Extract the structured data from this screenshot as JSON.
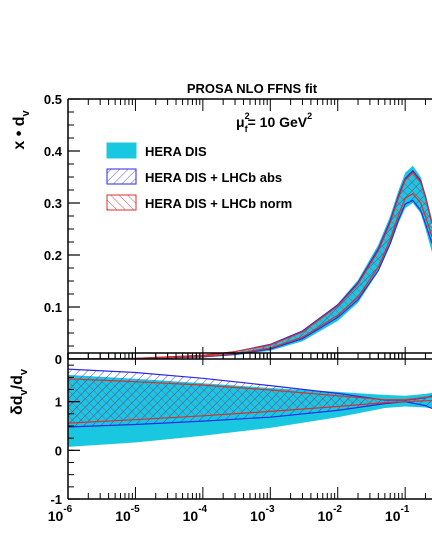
{
  "chart_data": [
    {
      "type": "area",
      "title": "PROSA NLO FFNS fit",
      "annotation": {
        "base": "μ",
        "sup": "2",
        "sub": "f",
        "rest": "= 10 GeV",
        "rest_sup": "2"
      },
      "ylabel": {
        "base": "x • d",
        "sub": "v"
      },
      "x_log": true,
      "xlim": [
        1e-06,
        0.25
      ],
      "ylim": [
        0,
        0.5
      ],
      "y_ticks": [
        "0",
        "0.1",
        "0.2",
        "0.3",
        "0.4",
        "0.5"
      ],
      "legend_placement": "top-left",
      "series": [
        {
          "name": "HERA DIS",
          "style": "filled",
          "color": "#19c8e0",
          "x": [
            1e-06,
            1e-05,
            0.0001,
            0.0003,
            0.001,
            0.003,
            0.01,
            0.02,
            0.04,
            0.06,
            0.08,
            0.1,
            0.13,
            0.17,
            0.2,
            0.25
          ],
          "lower": [
            0,
            0.0004,
            0.003,
            0.007,
            0.016,
            0.034,
            0.073,
            0.108,
            0.168,
            0.218,
            0.262,
            0.29,
            0.3,
            0.28,
            0.25,
            0.205
          ],
          "upper": [
            0,
            0.0009,
            0.006,
            0.012,
            0.026,
            0.052,
            0.106,
            0.152,
            0.22,
            0.275,
            0.325,
            0.358,
            0.372,
            0.35,
            0.315,
            0.255
          ]
        },
        {
          "name": "HERA DIS + LHCb abs",
          "style": "hatched",
          "color": "#2a2ae0",
          "x": [
            1e-06,
            1e-05,
            0.0001,
            0.0003,
            0.001,
            0.003,
            0.01,
            0.02,
            0.04,
            0.06,
            0.08,
            0.1,
            0.13,
            0.17,
            0.2,
            0.25
          ],
          "lower": [
            0,
            0.0006,
            0.004,
            0.009,
            0.019,
            0.039,
            0.08,
            0.114,
            0.17,
            0.222,
            0.268,
            0.298,
            0.305,
            0.286,
            0.26,
            0.222
          ],
          "upper": [
            0,
            0.0011,
            0.007,
            0.014,
            0.028,
            0.054,
            0.104,
            0.147,
            0.212,
            0.266,
            0.315,
            0.347,
            0.362,
            0.343,
            0.313,
            0.262
          ]
        },
        {
          "name": "HERA DIS + LHCb norm",
          "style": "hatched",
          "color": "#d8302c",
          "x": [
            1e-06,
            1e-05,
            0.0001,
            0.0003,
            0.001,
            0.003,
            0.01,
            0.02,
            0.04,
            0.06,
            0.08,
            0.1,
            0.13,
            0.17,
            0.2,
            0.25
          ],
          "lower": [
            0,
            0.0007,
            0.005,
            0.01,
            0.021,
            0.042,
            0.084,
            0.119,
            0.177,
            0.23,
            0.277,
            0.309,
            0.318,
            0.3,
            0.274,
            0.235
          ],
          "upper": [
            0,
            0.001,
            0.007,
            0.014,
            0.027,
            0.052,
            0.102,
            0.144,
            0.208,
            0.262,
            0.311,
            0.344,
            0.359,
            0.34,
            0.31,
            0.26
          ]
        }
      ]
    },
    {
      "type": "area",
      "ylabel": {
        "base": "δd",
        "sub1": "v",
        "mid": "/d",
        "sub2": "v"
      },
      "x_log": true,
      "xlim": [
        1e-06,
        0.25
      ],
      "ylim": [
        -1,
        2
      ],
      "y_ticks": [
        "-1",
        "0",
        "1"
      ],
      "x_tick_labels": [
        {
          "base": "10",
          "exp": "-6"
        },
        {
          "base": "10",
          "exp": "-5"
        },
        {
          "base": "10",
          "exp": "-4"
        },
        {
          "base": "10",
          "exp": "-3"
        },
        {
          "base": "10",
          "exp": "-2"
        },
        {
          "base": "10",
          "exp": "-1"
        }
      ],
      "series": [
        {
          "name": "HERA DIS",
          "style": "filled",
          "color": "#19c8e0",
          "x": [
            1e-06,
            1e-05,
            0.0001,
            0.001,
            0.01,
            0.05,
            0.1,
            0.2,
            0.25
          ],
          "lower": [
            0.07,
            0.16,
            0.3,
            0.46,
            0.68,
            0.87,
            0.9,
            0.88,
            0.86
          ],
          "upper": [
            1.55,
            1.47,
            1.38,
            1.28,
            1.2,
            1.14,
            1.12,
            1.16,
            1.18
          ]
        },
        {
          "name": "HERA DIS + LHCb abs",
          "style": "hatched",
          "color": "#2a2ae0",
          "x": [
            1e-06,
            1e-05,
            0.0001,
            0.001,
            0.01,
            0.05,
            0.1,
            0.2,
            0.25
          ],
          "lower": [
            0.48,
            0.53,
            0.6,
            0.68,
            0.82,
            0.96,
            1.0,
            0.92,
            0.86
          ],
          "upper": [
            1.67,
            1.6,
            1.48,
            1.33,
            1.17,
            1.03,
            1.03,
            1.08,
            1.12
          ]
        },
        {
          "name": "HERA DIS + LHCb norm",
          "style": "hatched",
          "color": "#d8302c",
          "x": [
            1e-06,
            1e-05,
            0.0001,
            0.001,
            0.01,
            0.05,
            0.1,
            0.2,
            0.25
          ],
          "lower": [
            0.56,
            0.63,
            0.71,
            0.8,
            0.9,
            0.98,
            1.0,
            1.02,
            1.02
          ],
          "upper": [
            1.47,
            1.41,
            1.34,
            1.24,
            1.12,
            1.04,
            1.04,
            1.09,
            1.1
          ]
        }
      ]
    }
  ]
}
